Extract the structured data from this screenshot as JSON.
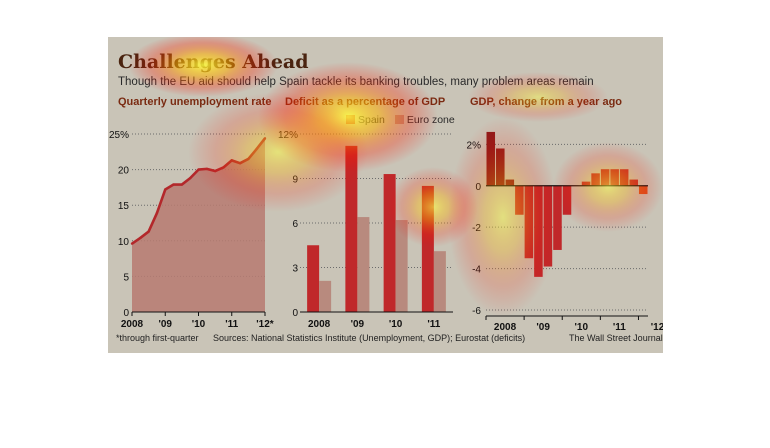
{
  "header": {
    "title": "Challenges Ahead",
    "subtitle": "Though the EU aid should help Spain tackle its banking troubles, many problem areas remain"
  },
  "footer": {
    "note": "*through first-quarter",
    "sources": "Sources: National Statistics Institute (Unemployment, GDP); Eurostat (deficits)",
    "credit": "The Wall Street Journal"
  },
  "colors": {
    "dark_red": "#8b1a1a",
    "red": "#c0282a",
    "muted_red": "#b88a7e",
    "line": "#b3282b",
    "area": "#b77a71",
    "axis_text": "#111111"
  },
  "chart_data": [
    {
      "type": "area",
      "title": "Quarterly unemployment rate",
      "ylim": [
        0,
        25
      ],
      "yticks": [
        "0",
        "5",
        "10",
        "15",
        "20",
        "25%"
      ],
      "xtick_labels": [
        "2008",
        "'09",
        "'10",
        "'11",
        "'12*"
      ],
      "x": [
        "2008 Q1",
        "2008 Q2",
        "2008 Q3",
        "2008 Q4",
        "2009 Q1",
        "2009 Q2",
        "2009 Q3",
        "2009 Q4",
        "2010 Q1",
        "2010 Q2",
        "2010 Q3",
        "2010 Q4",
        "2011 Q1",
        "2011 Q2",
        "2011 Q3",
        "2011 Q4",
        "2012 Q1"
      ],
      "values": [
        9.6,
        10.4,
        11.3,
        13.9,
        17.2,
        17.9,
        17.9,
        18.8,
        20.0,
        20.1,
        19.8,
        20.3,
        21.3,
        20.9,
        21.5,
        22.9,
        24.4
      ]
    },
    {
      "type": "bar",
      "title": "Deficit as a percentage of GDP",
      "ylim": [
        0,
        12
      ],
      "yticks": [
        "0",
        "3",
        "6",
        "9",
        "12%"
      ],
      "categories": [
        "2008",
        "'09",
        "'10",
        "'11"
      ],
      "series": [
        {
          "name": "Spain",
          "values": [
            4.5,
            11.2,
            9.3,
            8.5
          ]
        },
        {
          "name": "Euro zone",
          "values": [
            2.1,
            6.4,
            6.2,
            4.1
          ]
        }
      ]
    },
    {
      "type": "bar",
      "title": "GDP, change from a year ago",
      "ylim": [
        -6,
        2.5
      ],
      "yticks": [
        "-6",
        "-4",
        "-2",
        "0",
        "2%"
      ],
      "xtick_labels": [
        "2008",
        "'09",
        "'10",
        "'11",
        "'12"
      ],
      "categories": [
        "2008 Q1",
        "2008 Q2",
        "2008 Q3",
        "2008 Q4",
        "2009 Q1",
        "2009 Q2",
        "2009 Q3",
        "2009 Q4",
        "2010 Q1",
        "2010 Q2",
        "2010 Q3",
        "2010 Q4",
        "2011 Q1",
        "2011 Q2",
        "2011 Q3",
        "2011 Q4",
        "2012 Q1"
      ],
      "values": [
        2.6,
        1.8,
        0.3,
        -1.4,
        -3.5,
        -4.4,
        -3.9,
        -3.1,
        -1.4,
        0.0,
        0.2,
        0.6,
        0.8,
        0.8,
        0.8,
        0.3,
        -0.4
      ]
    }
  ]
}
